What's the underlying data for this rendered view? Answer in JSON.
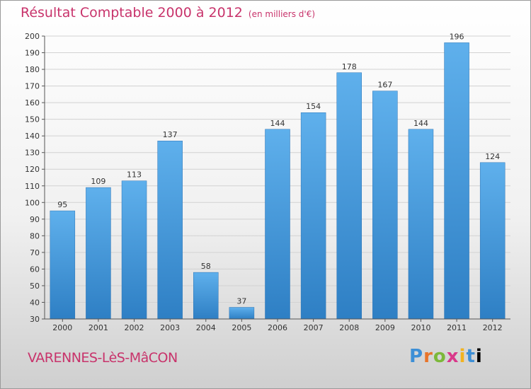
{
  "chart": {
    "title": "Résultat Comptable 2000 à 2012",
    "subtitle": "(en milliers d'€)",
    "location": "VARENNES-LèS-MâCON",
    "logo": "Proxiti"
  },
  "chart_data": {
    "type": "bar",
    "title": "Résultat Comptable 2000 à 2012",
    "subtitle": "(en milliers d'€)",
    "categories": [
      "2000",
      "2001",
      "2002",
      "2003",
      "2004",
      "2005",
      "2006",
      "2007",
      "2008",
      "2009",
      "2010",
      "2011",
      "2012"
    ],
    "values": [
      95,
      109,
      113,
      137,
      58,
      37,
      144,
      154,
      178,
      167,
      144,
      196,
      124
    ],
    "ylim": [
      30,
      200
    ],
    "yticks": [
      30,
      40,
      50,
      60,
      70,
      80,
      90,
      100,
      110,
      120,
      130,
      140,
      150,
      160,
      170,
      180,
      190,
      200
    ],
    "grid": true,
    "bar_color": "#4a9ee0",
    "label_color": "#c8336b"
  }
}
